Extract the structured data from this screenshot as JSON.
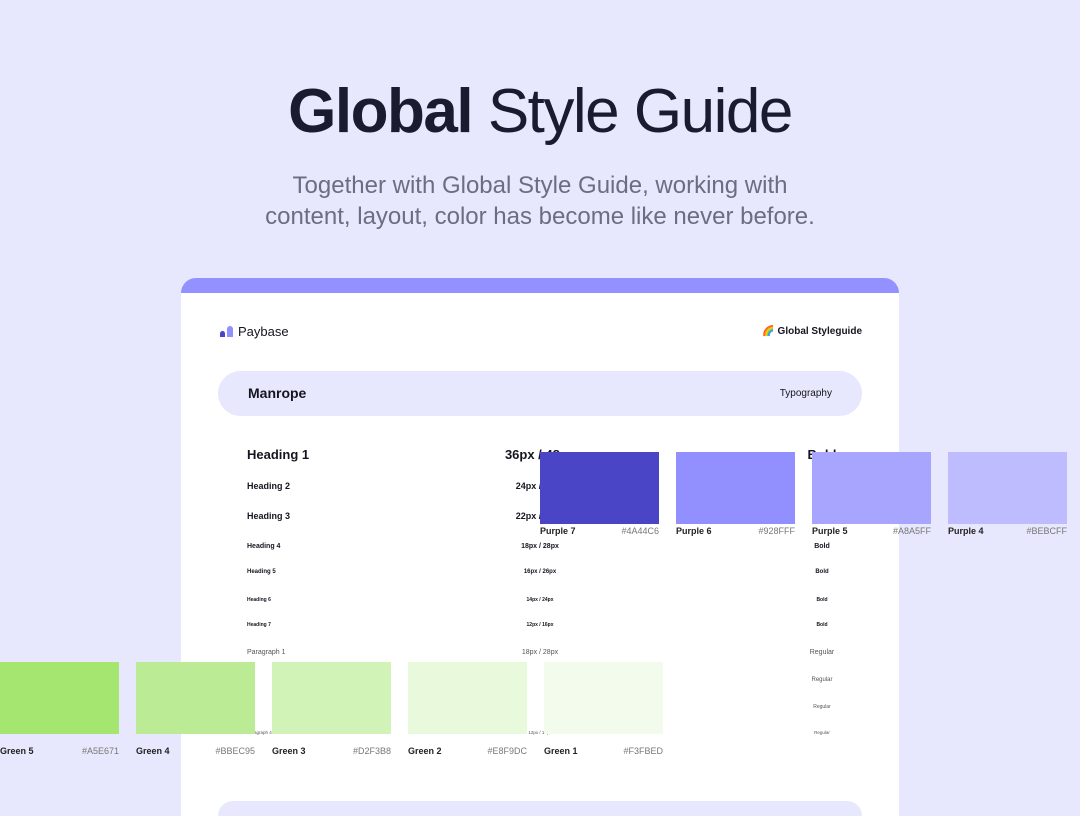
{
  "hero": {
    "title_bold": "Global",
    "title_regular": "Style Guide",
    "subtitle_line1": "Together with Global Style Guide, working with",
    "subtitle_line2": "content, layout, color has become like never before."
  },
  "card": {
    "brand": "Paybase",
    "badge": "🌈 Global Styleguide",
    "font_name": "Manrope",
    "section": "Typography",
    "rows": [
      {
        "name": "Heading 1",
        "size": "36px / 48px",
        "weight": "Bold"
      },
      {
        "name": "Heading 2",
        "size": "24px / 32px",
        "weight": "Bold"
      },
      {
        "name": "Heading 3",
        "size": "22px / 30px",
        "weight": "Bold"
      },
      {
        "name": "Heading 4",
        "size": "18px / 28px",
        "weight": "Bold"
      },
      {
        "name": "Heading 5",
        "size": "16px / 26px",
        "weight": "Bold"
      },
      {
        "name": "Heading 6",
        "size": "14px / 24px",
        "weight": "Bold"
      },
      {
        "name": "Heading 7",
        "size": "12px / 16px",
        "weight": "Bold"
      },
      {
        "name": "Paragraph 1",
        "size": "18px / 28px",
        "weight": "Regular"
      },
      {
        "name": "",
        "size": "",
        "weight": "Regular"
      },
      {
        "name": "",
        "size": "",
        "weight": "Regular"
      },
      {
        "name": "Paragraph 4",
        "size": "12px / 16px",
        "weight": "Regular"
      }
    ]
  },
  "purples": [
    {
      "name": "Purple 7",
      "hex": "#4A44C6"
    },
    {
      "name": "Purple 6",
      "hex": "#928FFF"
    },
    {
      "name": "Purple 5",
      "hex": "#A8A5FF"
    },
    {
      "name": "Purple 4",
      "hex": "#BEBCFF"
    }
  ],
  "greens": [
    {
      "name": "Green 5",
      "hex": "#A5E671"
    },
    {
      "name": "Green 4",
      "hex": "#BBEC95"
    },
    {
      "name": "Green 3",
      "hex": "#D2F3B8"
    },
    {
      "name": "Green 2",
      "hex": "#E8F9DC"
    },
    {
      "name": "Green 1",
      "hex": "#F3FBED"
    }
  ]
}
